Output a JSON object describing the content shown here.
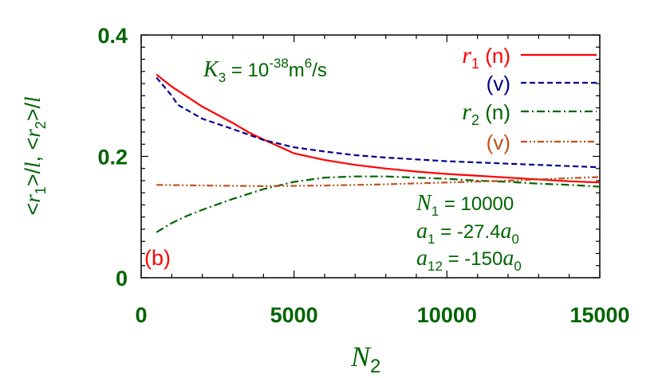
{
  "chart_data": {
    "type": "line",
    "panel_label": "(b)",
    "xlabel_main": "N",
    "xlabel_sub": "2",
    "ylabel": {
      "p1": "<",
      "v1": "r",
      "s1": "1",
      "p2": ">/",
      "v2": "l",
      "p3": ", <",
      "v3": "r",
      "s2": "2",
      "p4": ">/",
      "v4": "l"
    },
    "xlim": [
      0,
      15000
    ],
    "ylim": [
      0,
      0.4
    ],
    "xticks": [
      0,
      5000,
      10000,
      15000
    ],
    "xtick_labels": [
      "0",
      "5000",
      "10000",
      "15000"
    ],
    "yticks": [
      0,
      0.2,
      0.4
    ],
    "ytick_labels": [
      "0",
      "0.2",
      "0.4"
    ],
    "annotation_k3": {
      "sym": "K",
      "sub": "3",
      "eq": " = 10",
      "exp": "-38",
      "unit1": "m",
      "exp2": "6",
      "unit2": "/s"
    },
    "params": [
      {
        "sym": "N",
        "sub": "1",
        "text": " = 10000"
      },
      {
        "sym": "a",
        "sub": "1",
        "text": " = -27.4",
        "sym2": "a",
        "sub2": "0"
      },
      {
        "sym": "a",
        "sub": "12",
        "text": " = -150",
        "sym2": "a",
        "sub2": "0"
      }
    ],
    "legend_position": "top-right",
    "colors": {
      "axis_text": "#006400",
      "r1_n": "#ff0000",
      "r1_v": "#00008b",
      "r2_n": "#006400",
      "r2_v": "#c0501a",
      "panel": "#ff0000"
    },
    "series": [
      {
        "legend_var": "r",
        "legend_sub": "1",
        "legend_text": "(n)",
        "color": "#ff0000",
        "dash": "solid",
        "x": [
          500,
          1000,
          2000,
          3000,
          3500,
          4000,
          5000,
          6000,
          7000,
          8000,
          9000,
          10000,
          11000,
          12000,
          13000,
          14000,
          15000
        ],
        "y": [
          0.335,
          0.315,
          0.282,
          0.255,
          0.24,
          0.228,
          0.205,
          0.194,
          0.186,
          0.18,
          0.175,
          0.171,
          0.168,
          0.165,
          0.162,
          0.159,
          0.157
        ]
      },
      {
        "legend_var": "",
        "legend_sub": "",
        "legend_text": "(v)",
        "color": "#00008b",
        "dash": "dashed",
        "x": [
          500,
          1000,
          1200,
          2000,
          3000,
          4000,
          5000,
          6000,
          7000,
          8000,
          9000,
          10000,
          11000,
          12000,
          13000,
          14000,
          15000
        ],
        "y": [
          0.33,
          0.3,
          0.285,
          0.262,
          0.245,
          0.227,
          0.215,
          0.208,
          0.202,
          0.198,
          0.195,
          0.192,
          0.19,
          0.188,
          0.186,
          0.184,
          0.182
        ]
      },
      {
        "legend_var": "r",
        "legend_sub": "2",
        "legend_text": "(n)",
        "color": "#006400",
        "dash": "dashdot",
        "x": [
          500,
          1000,
          1500,
          2000,
          3000,
          4000,
          5000,
          6000,
          7000,
          8000,
          9000,
          10000,
          11000,
          12000,
          13000,
          14000,
          15000
        ],
        "y": [
          0.075,
          0.09,
          0.102,
          0.112,
          0.13,
          0.146,
          0.158,
          0.165,
          0.167,
          0.167,
          0.165,
          0.163,
          0.16,
          0.158,
          0.155,
          0.153,
          0.15
        ]
      },
      {
        "legend_var": "",
        "legend_sub": "",
        "legend_text": "(v)",
        "color": "#c0501a",
        "dash": "dashdotdot",
        "x": [
          500,
          2000,
          4000,
          6000,
          8000,
          10000,
          12000,
          14000,
          15000
        ],
        "y": [
          0.153,
          0.152,
          0.151,
          0.152,
          0.154,
          0.157,
          0.16,
          0.164,
          0.166
        ]
      }
    ]
  }
}
